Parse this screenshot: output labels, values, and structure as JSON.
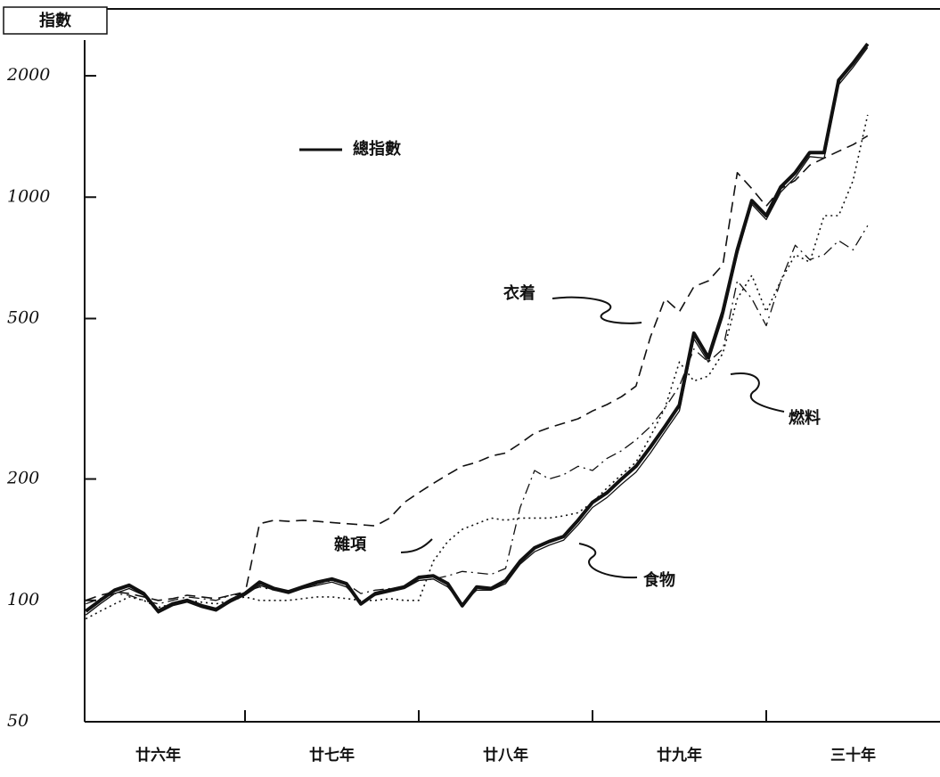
{
  "chart_data": {
    "type": "line",
    "ylabel": "指數",
    "yscale": "log",
    "ylim": [
      50,
      2930
    ],
    "yticks": [
      50,
      100,
      200,
      500,
      1000,
      2000
    ],
    "xlim": [
      0,
      60
    ],
    "xticks": [
      {
        "value": 6,
        "label": "廿六年"
      },
      {
        "value": 18,
        "label": "廿七年"
      },
      {
        "value": 30,
        "label": "廿八年"
      },
      {
        "value": 42,
        "label": "廿九年"
      },
      {
        "value": 54,
        "label": "三十年"
      }
    ],
    "legend": "upper left",
    "x": [
      1,
      2,
      3,
      4,
      5,
      6,
      7,
      8,
      9,
      10,
      11,
      12,
      13,
      14,
      15,
      16,
      17,
      18,
      19,
      20,
      21,
      22,
      23,
      24,
      25,
      26,
      27,
      28,
      29,
      30,
      31,
      32,
      33,
      34,
      35,
      36,
      37,
      38,
      39,
      40,
      41,
      42,
      43,
      44,
      45,
      46,
      47,
      48,
      49,
      50,
      51,
      52,
      53,
      54,
      55
    ],
    "series": [
      {
        "name": "總指數",
        "color": "#111111",
        "dash": "solid",
        "width": 4,
        "values": [
          94,
          100,
          106,
          109,
          104,
          94,
          98,
          100,
          97,
          95,
          100,
          104,
          111,
          107,
          105,
          108,
          111,
          113,
          110,
          98,
          104,
          106,
          108,
          114,
          115,
          110,
          97,
          108,
          107,
          112,
          125,
          135,
          140,
          144,
          158,
          175,
          185,
          200,
          215,
          240,
          270,
          305,
          460,
          400,
          520,
          740,
          980,
          900,
          1060,
          1150,
          1290,
          1290,
          1950,
          2150,
          2400
        ]
      },
      {
        "name": "食物",
        "color": "#111111",
        "dash": "solid",
        "width": 1.3,
        "values": [
          92,
          98,
          104,
          107,
          103,
          93,
          97,
          99,
          96,
          94,
          99,
          103,
          109,
          106,
          104,
          107,
          109,
          111,
          108,
          99,
          103,
          105,
          107,
          112,
          113,
          108,
          98,
          106,
          106,
          110,
          123,
          132,
          137,
          141,
          154,
          170,
          180,
          194,
          208,
          232,
          262,
          295,
          445,
          390,
          505,
          720,
          960,
          880,
          1030,
          1120,
          1260,
          1250,
          1900,
          2100,
          2350
        ]
      },
      {
        "name": "衣着",
        "color": "#111111",
        "dash": "dashed",
        "width": 1.6,
        "values": [
          100,
          103,
          105,
          104,
          102,
          100,
          101,
          103,
          102,
          101,
          103,
          104,
          155,
          158,
          157,
          158,
          157,
          156,
          155,
          154,
          153,
          160,
          175,
          185,
          195,
          205,
          215,
          220,
          228,
          232,
          245,
          260,
          268,
          275,
          282,
          295,
          306,
          320,
          340,
          450,
          560,
          520,
          600,
          620,
          680,
          1150,
          1050,
          950,
          1050,
          1100,
          1200,
          1250,
          1300,
          1350,
          1420
        ]
      },
      {
        "name": "燃料",
        "color": "#111111",
        "dash": "dotted",
        "width": 1.6,
        "values": [
          90,
          94,
          98,
          102,
          100,
          96,
          98,
          100,
          99,
          98,
          100,
          102,
          100,
          100,
          100,
          101,
          102,
          102,
          101,
          100,
          100,
          101,
          100,
          100,
          125,
          140,
          150,
          155,
          160,
          158,
          160,
          160,
          160,
          162,
          165,
          175,
          190,
          205,
          220,
          255,
          300,
          390,
          350,
          360,
          410,
          560,
          640,
          520,
          620,
          720,
          690,
          900,
          900,
          1100,
          1600
        ]
      },
      {
        "name": "雜項",
        "color": "#111111",
        "dash": "dashdot",
        "width": 1.3,
        "values": [
          98,
          101,
          104,
          103,
          100,
          98,
          100,
          102,
          101,
          100,
          103,
          105,
          108,
          106,
          105,
          107,
          110,
          112,
          110,
          104,
          106,
          107,
          108,
          112,
          113,
          115,
          118,
          117,
          116,
          120,
          170,
          210,
          200,
          205,
          215,
          210,
          225,
          235,
          250,
          270,
          300,
          340,
          420,
          390,
          420,
          620,
          560,
          480,
          620,
          760,
          700,
          720,
          780,
          740,
          850
        ]
      }
    ]
  }
}
